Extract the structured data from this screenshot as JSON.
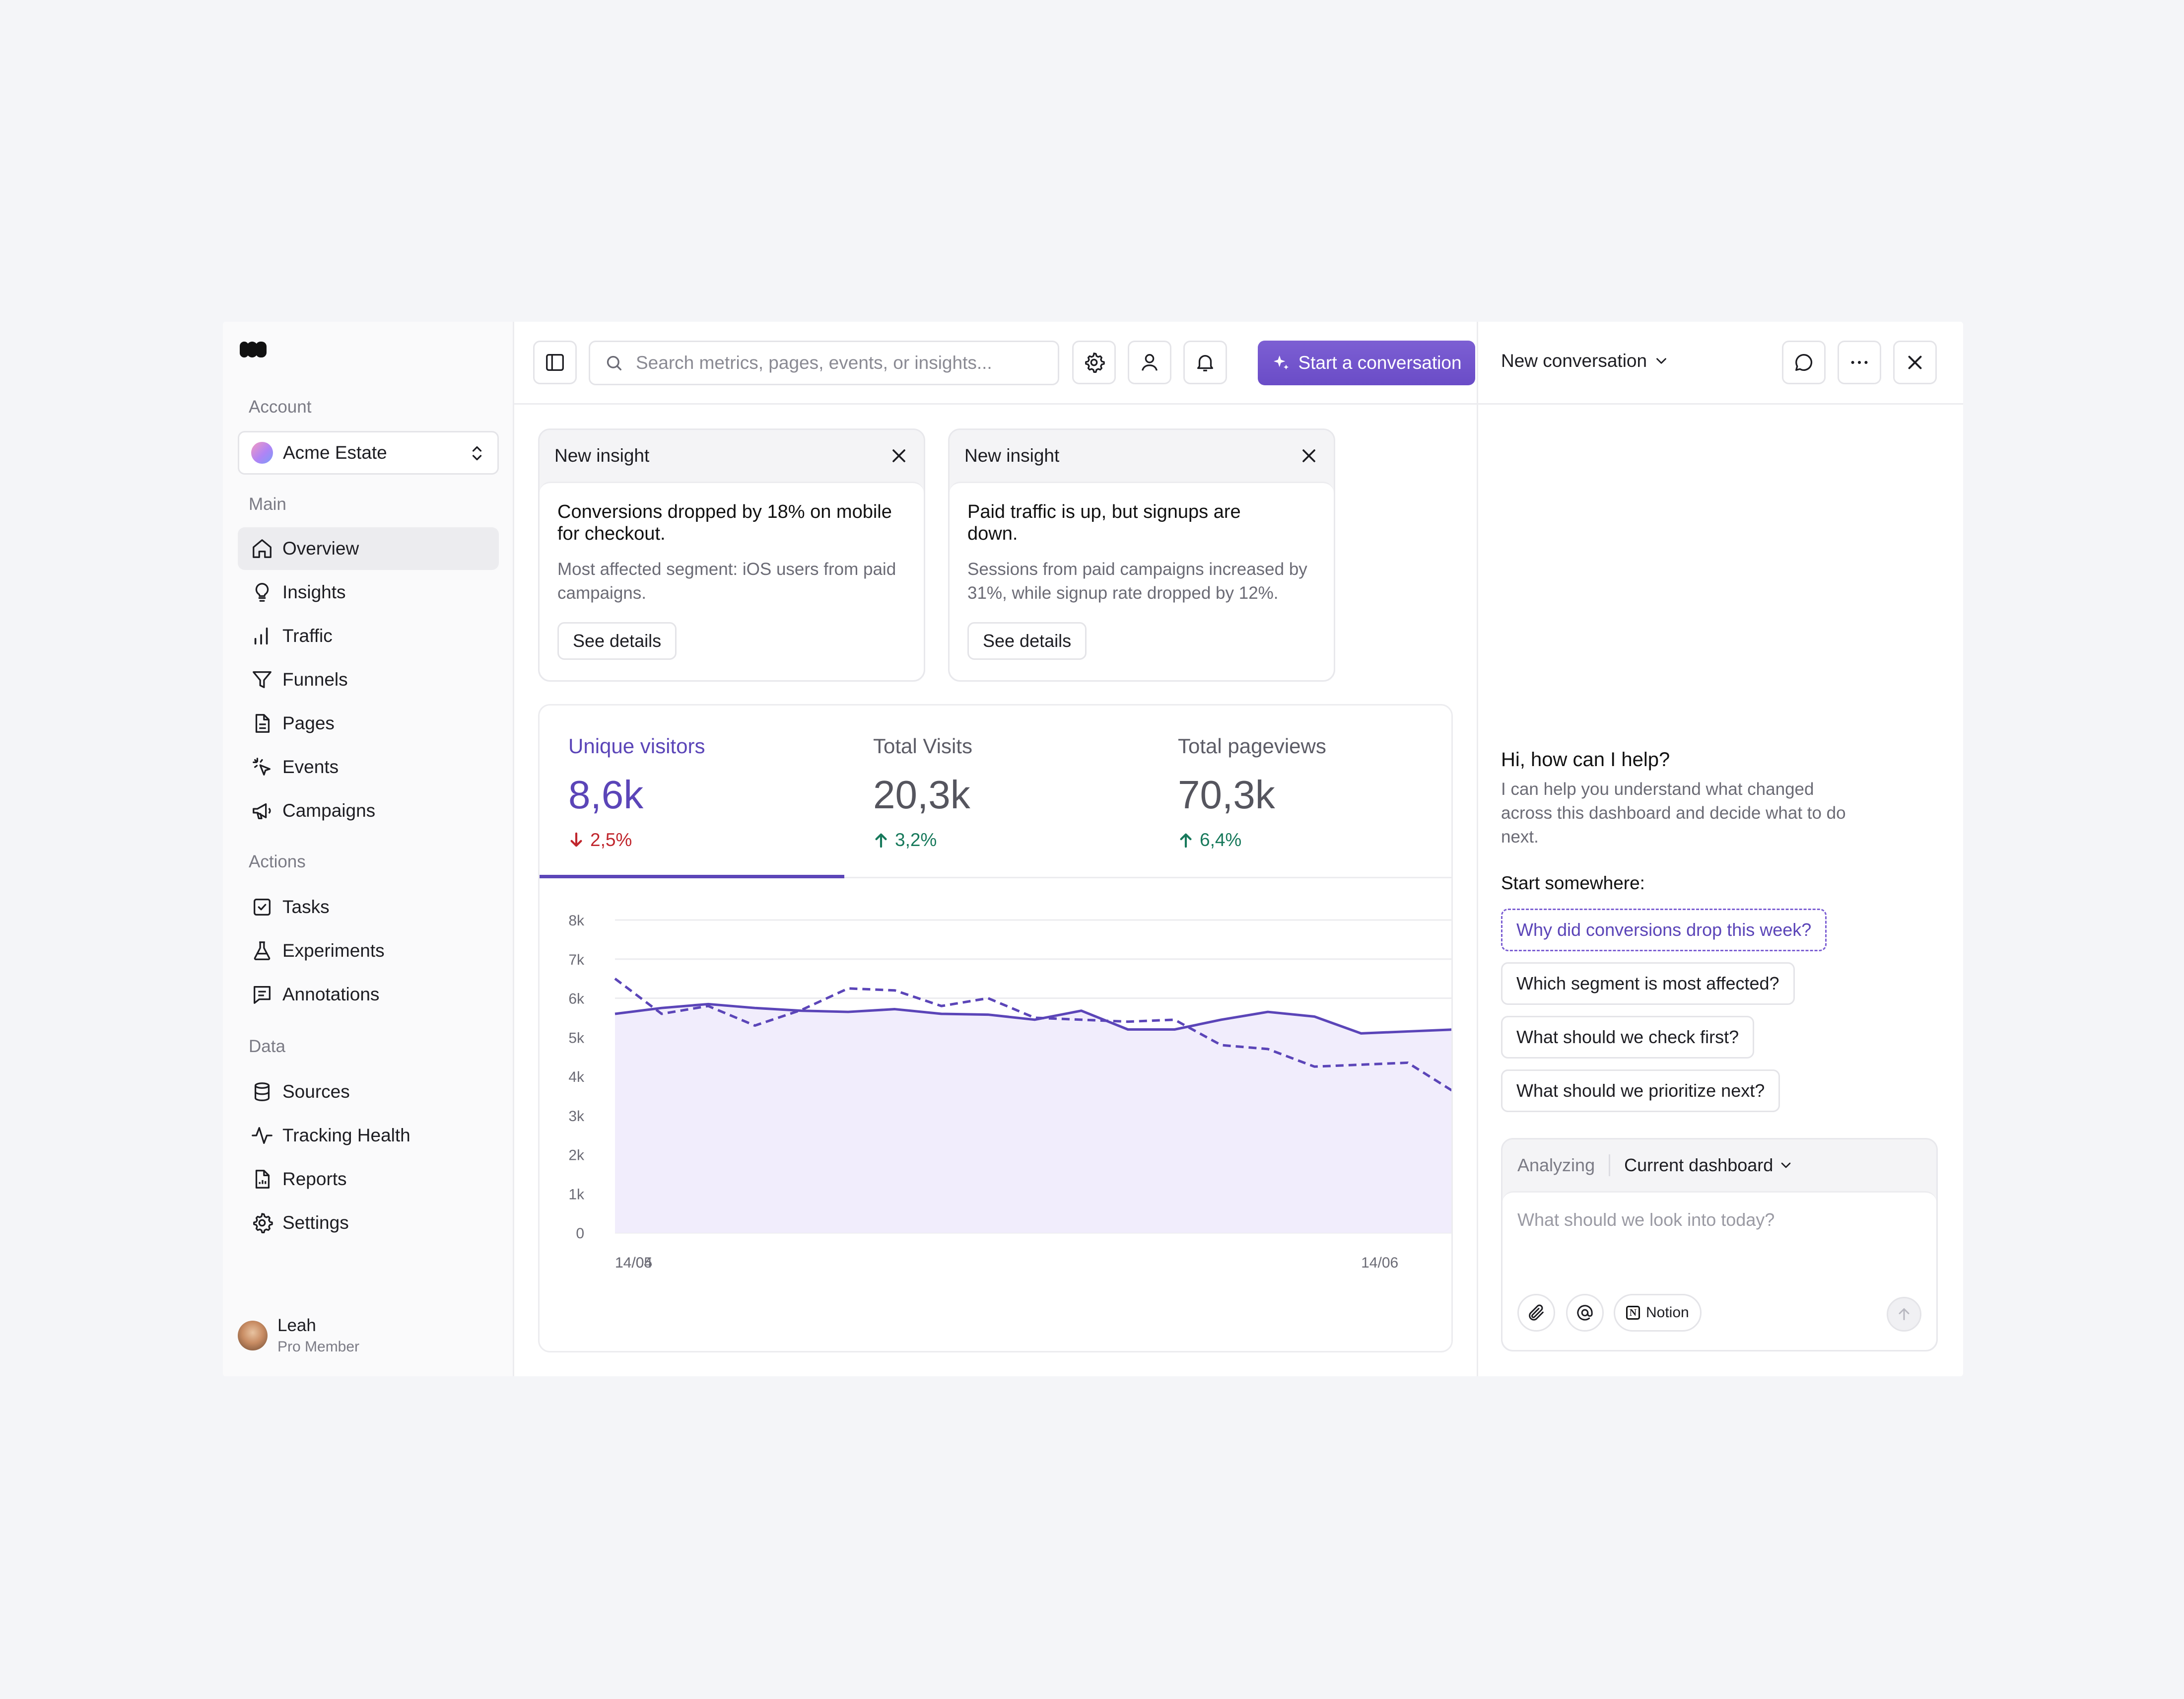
{
  "sidebar": {
    "sections": {
      "account": "Account",
      "main": "Main",
      "actions": "Actions",
      "data": "Data"
    },
    "account_name": "Acme Estate",
    "main_items": [
      {
        "label": "Overview",
        "icon": "home-icon",
        "active": true
      },
      {
        "label": "Insights",
        "icon": "lightbulb-icon"
      },
      {
        "label": "Traffic",
        "icon": "bar-chart-icon"
      },
      {
        "label": "Funnels",
        "icon": "funnel-icon"
      },
      {
        "label": "Pages",
        "icon": "document-icon"
      },
      {
        "label": "Events",
        "icon": "cursor-click-icon"
      },
      {
        "label": "Campaigns",
        "icon": "megaphone-icon"
      }
    ],
    "action_items": [
      {
        "label": "Tasks",
        "icon": "checkbox-icon"
      },
      {
        "label": "Experiments",
        "icon": "flask-icon"
      },
      {
        "label": "Annotations",
        "icon": "note-icon"
      }
    ],
    "data_items": [
      {
        "label": "Sources",
        "icon": "database-icon"
      },
      {
        "label": "Tracking Health",
        "icon": "pulse-icon"
      },
      {
        "label": "Reports",
        "icon": "report-icon"
      },
      {
        "label": "Settings",
        "icon": "gear-icon"
      }
    ],
    "user": {
      "name": "Leah",
      "role": "Pro Member"
    }
  },
  "topbar": {
    "search_placeholder": "Search metrics, pages, events, or insights...",
    "cta_label": "Start a conversation"
  },
  "insights": [
    {
      "header": "New insight",
      "title": "Conversions dropped by 18% on mobile for checkout.",
      "text": "Most affected segment: iOS users from paid campaigns.",
      "button": "See details"
    },
    {
      "header": "New insight",
      "title": "Paid traffic is up, but signups are down.",
      "text": "Sessions from paid campaigns increased by 31%, while signup rate dropped by 12%.",
      "button": "See details"
    }
  ],
  "stats": [
    {
      "label": "Unique visitors",
      "value": "8,6k",
      "delta": "2,5%",
      "direction": "down",
      "active": true
    },
    {
      "label": "Total Visits",
      "value": "20,3k",
      "delta": "3,2%",
      "direction": "up"
    },
    {
      "label": "Total pageviews",
      "value": "70,3k",
      "delta": "6,4%",
      "direction": "up"
    }
  ],
  "colors": {
    "accent": "#5b45b8",
    "down": "#c0262d",
    "up": "#17795b",
    "area": "#f1edfc"
  },
  "chart_data": {
    "type": "line",
    "x": [
      "14/04",
      "17/04",
      "21/04",
      "26/04",
      "30/04",
      "01/05",
      "05/05",
      "08/05",
      "13/05",
      "16/05",
      "21/05",
      "25/05",
      "29/05",
      "01/06",
      "07/06",
      "08/06",
      "14/06",
      "18/06",
      "25/06"
    ],
    "x_ticks": [
      "14/04",
      "14/05",
      "14/06"
    ],
    "y_ticks": [
      "0",
      "1k",
      "2k",
      "3k",
      "4k",
      "5k",
      "6k",
      "7k",
      "8k"
    ],
    "ylim": [
      0,
      8000
    ],
    "series": [
      {
        "style": "solid",
        "values": [
          5600,
          5750,
          5850,
          5750,
          5680,
          5650,
          5720,
          5600,
          5580,
          5450,
          5680,
          5200,
          5200,
          5450,
          5650,
          5530,
          5100,
          5150,
          5200
        ]
      },
      {
        "style": "dashed",
        "values": [
          6500,
          5600,
          5800,
          5300,
          5700,
          6250,
          6200,
          5800,
          6000,
          5500,
          5450,
          5400,
          5450,
          4800,
          4700,
          4250,
          4300,
          4350,
          3600
        ]
      }
    ]
  },
  "panel": {
    "title": "New conversation",
    "greeting": "Hi, how can I help?",
    "greeting_text": "I can help you understand what changed across this dashboard and decide what to do next.",
    "start_label": "Start somewhere:",
    "suggestions": [
      "Why did conversions drop this week?",
      "Which segment is most affected?",
      "What should we check first?",
      "What should we prioritize next?"
    ],
    "analyzing_label": "Analyzing",
    "scope": "Current dashboard",
    "input_placeholder": "What should we look into today?",
    "notion_label": "Notion"
  }
}
